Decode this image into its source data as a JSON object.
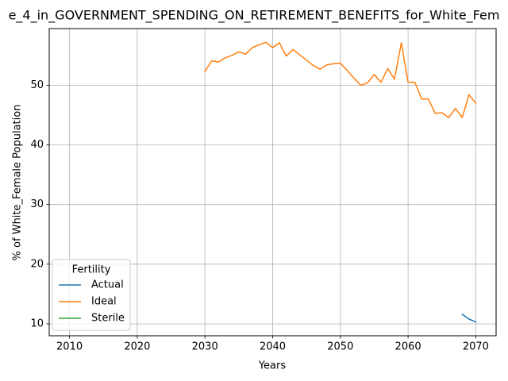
{
  "chart_data": {
    "type": "line",
    "title": "e_4_in_GOVERNMENT_SPENDING_ON_RETIREMENT_BENEFITS_for_White_Fem",
    "xlabel": "Years",
    "ylabel": "% of White_Female Population",
    "xlim": [
      2007,
      2073
    ],
    "ylim": [
      8,
      59.5
    ],
    "xticks": [
      2010,
      2020,
      2030,
      2040,
      2050,
      2060,
      2070
    ],
    "yticks": [
      10,
      20,
      30,
      40,
      50
    ],
    "grid": true,
    "legend": {
      "title": "Fertility",
      "placement": "lower-left",
      "entries": [
        "Actual",
        "Ideal",
        "Sterile"
      ]
    },
    "series": [
      {
        "name": "Actual",
        "color": "#1f77b4",
        "x": [
          2068,
          2069,
          2070
        ],
        "y": [
          11.6,
          10.8,
          10.3
        ]
      },
      {
        "name": "Ideal",
        "color": "#ff7f0e",
        "x": [
          2030,
          2031,
          2032,
          2033,
          2034,
          2035,
          2036,
          2037,
          2038,
          2039,
          2040,
          2041,
          2042,
          2043,
          2044,
          2045,
          2046,
          2047,
          2048,
          2049,
          2050,
          2051,
          2052,
          2053,
          2054,
          2055,
          2056,
          2057,
          2058,
          2059,
          2060,
          2061,
          2062,
          2063,
          2064,
          2065,
          2066,
          2067,
          2068,
          2069,
          2070
        ],
        "y": [
          52.3,
          54.1,
          53.9,
          54.6,
          55.0,
          55.6,
          55.2,
          56.3,
          56.8,
          57.2,
          56.3,
          57.1,
          54.9,
          56.0,
          55.1,
          54.2,
          53.3,
          52.7,
          53.4,
          53.6,
          53.7,
          52.5,
          51.2,
          50.0,
          50.4,
          51.8,
          50.5,
          52.8,
          51.0,
          57.1,
          50.5,
          50.5,
          47.7,
          47.7,
          45.3,
          45.4,
          44.6,
          46.1,
          44.6,
          48.4,
          47.0
        ]
      },
      {
        "name": "Sterile",
        "color": "#2ca02c",
        "x": [],
        "y": []
      }
    ]
  }
}
